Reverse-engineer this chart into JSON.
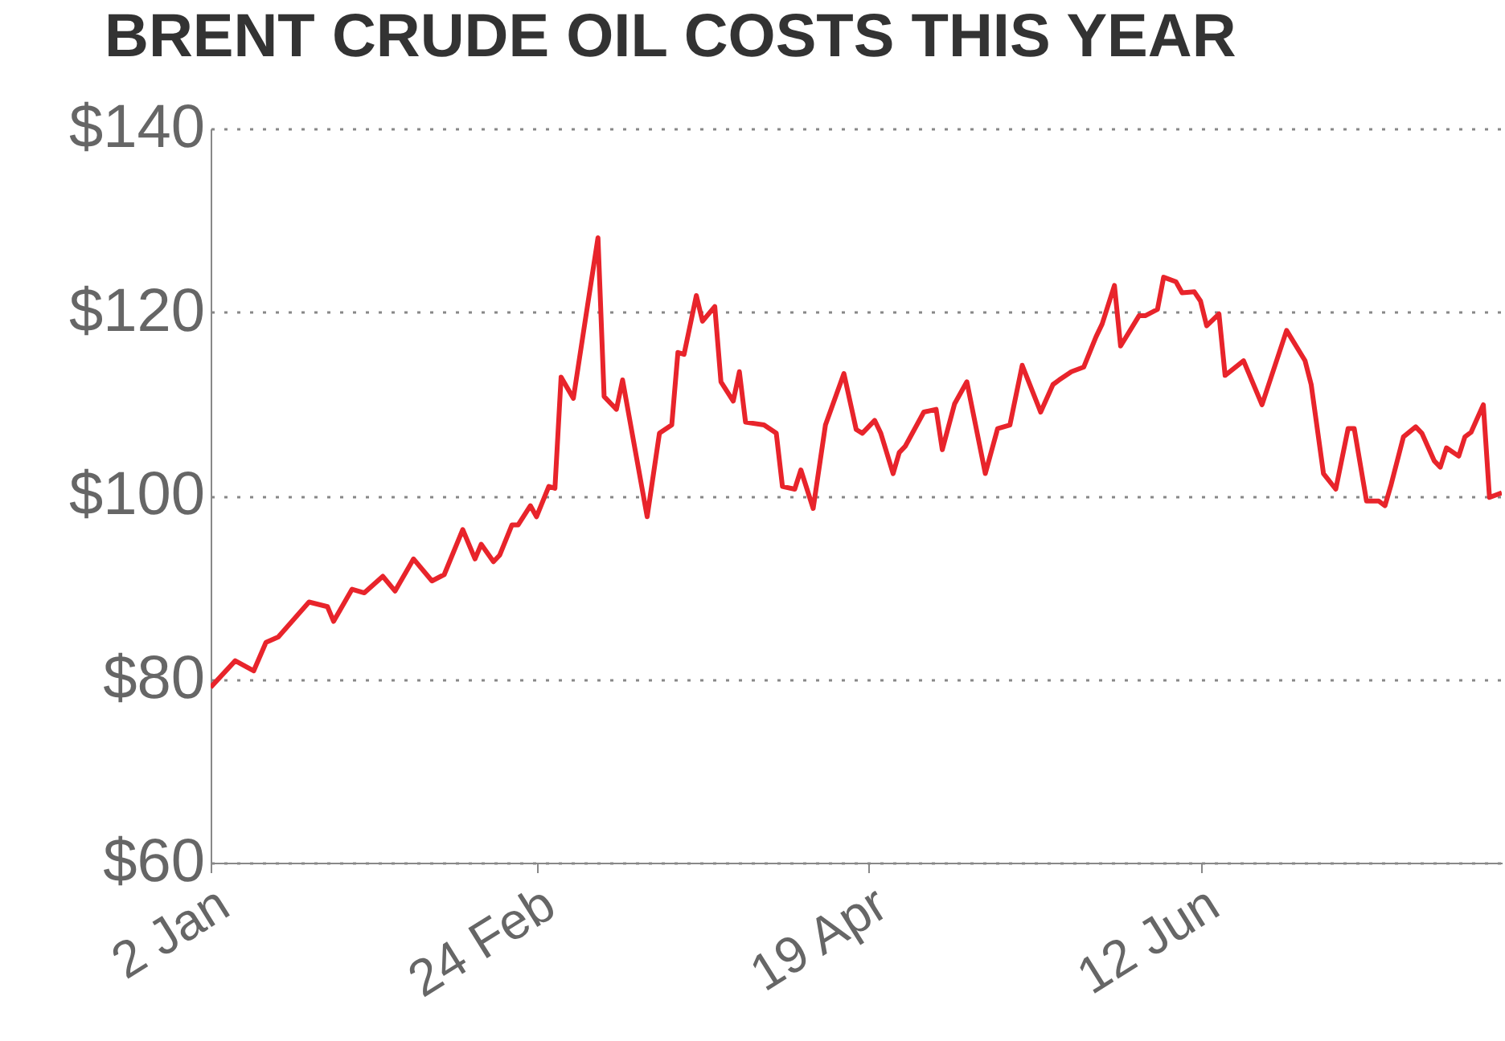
{
  "chart_data": {
    "type": "line",
    "title": "BRENT CRUDE OIL COSTS THIS YEAR",
    "x": [
      "--01-02",
      "--01-06",
      "--01-09",
      "--01-11",
      "--01-13",
      "--01-18",
      "--01-21",
      "--01-22",
      "--01-25",
      "--01-27",
      "--01-30",
      "--02-01",
      "--02-04",
      "--02-07",
      "--02-09",
      "--02-12",
      "--02-14",
      "--02-15",
      "--02-17",
      "--02-18",
      "--02-20",
      "--02-21",
      "--02-23",
      "--02-24",
      "--02-26",
      "--02-27",
      "--02-28",
      "--03-02",
      "--03-04",
      "--03-06",
      "--03-07",
      "--03-09",
      "--03-10",
      "--03-14",
      "--03-16",
      "--03-18",
      "--03-19",
      "--03-20",
      "--03-22",
      "--03-23",
      "--03-25",
      "--03-26",
      "--03-28",
      "--03-29",
      "--03-30",
      "--04-02",
      "--04-04",
      "--04-05",
      "--04-07",
      "--04-08",
      "--04-10",
      "--04-12",
      "--04-15",
      "--04-17",
      "--04-18",
      "--04-20",
      "--04-21",
      "--04-23",
      "--04-24",
      "--04-25",
      "--04-28",
      "--04-30",
      "--05-01",
      "--05-03",
      "--05-05",
      "--05-08",
      "--05-10",
      "--05-12",
      "--05-14",
      "--05-17",
      "--05-19",
      "--05-20",
      "--05-22",
      "--05-24",
      "--05-26",
      "--05-27",
      "--05-29",
      "--05-30",
      "--06-02",
      "--06-03",
      "--06-05",
      "--06-06",
      "--06-08",
      "--06-09",
      "--06-11",
      "--06-12",
      "--06-13",
      "--06-15",
      "--06-16",
      "--06-19",
      "--06-22",
      "--06-26",
      "--06-29",
      "--06-30",
      "--07-02",
      "--07-04",
      "--07-06",
      "--07-07",
      "--07-09",
      "--07-11",
      "--07-12",
      "--07-13",
      "--07-15",
      "--07-17",
      "--07-18",
      "--07-20",
      "--07-21",
      "--07-22",
      "--07-24",
      "--07-25",
      "--07-26",
      "--07-28",
      "--07-29",
      "--07-31"
    ],
    "series": [
      {
        "color": "#e8242b",
        "values": [
          79.1,
          82,
          80.9,
          84,
          84.6,
          88.4,
          87.9,
          86.3,
          89.8,
          89.4,
          91.2,
          89.6,
          93.1,
          90.7,
          91.4,
          96.3,
          93.1,
          94.7,
          92.8,
          93.5,
          96.8,
          96.8,
          98.9,
          97.7,
          101,
          100.8,
          112.9,
          110.6,
          119.4,
          128.1,
          110.8,
          109.4,
          112.6,
          97.7,
          106.8,
          107.7,
          115.6,
          115.4,
          121.8,
          119,
          120.6,
          112.4,
          110.3,
          113.5,
          108,
          107.7,
          106.8,
          101,
          100.7,
          102.8,
          98.6,
          107.7,
          113.3,
          107.2,
          106.8,
          108.2,
          106.8,
          102.4,
          104.7,
          105.4,
          109.1,
          109.4,
          105,
          110,
          112.4,
          102.4,
          107.3,
          107.7,
          114.2,
          109.1,
          112.1,
          112.6,
          113.5,
          114,
          117.3,
          118.7,
          122.9,
          116.3,
          119.6,
          119.6,
          120.3,
          123.8,
          123.3,
          122.1,
          122.2,
          121.2,
          118.5,
          119.8,
          113.1,
          114.7,
          109.9,
          118,
          114.7,
          112.1,
          102.4,
          100.7,
          107.3,
          107.3,
          99.4,
          99.4,
          98.9,
          101.2,
          106.4,
          107.5,
          106.8,
          103.8,
          103.1,
          105.2,
          104.3,
          106.4,
          106.9,
          109.9,
          99.8,
          100.3
        ]
      }
    ],
    "xlim": [
      "--01-02",
      "--07-31"
    ],
    "xticks": [
      {
        "value": "--01-02",
        "label": "2 Jan"
      },
      {
        "value": "--02-24",
        "label": "24 Feb"
      },
      {
        "value": "--04-19",
        "label": "19 Apr"
      },
      {
        "value": "--06-12",
        "label": "12 Jun"
      }
    ],
    "ylim": [
      60,
      140
    ],
    "yticks": [
      {
        "value": 60,
        "label": "$60"
      },
      {
        "value": 80,
        "label": "$80"
      },
      {
        "value": 100,
        "label": "$100"
      },
      {
        "value": 120,
        "label": "$120"
      },
      {
        "value": 140,
        "label": "$140"
      }
    ],
    "grid": "y",
    "marker": "none",
    "line_style": "solid"
  }
}
